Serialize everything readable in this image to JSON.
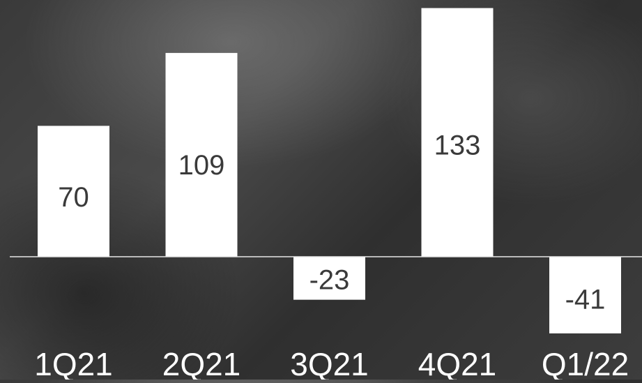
{
  "chart_data": {
    "type": "bar",
    "categories": [
      "1Q21",
      "2Q21",
      "3Q21",
      "4Q21",
      "Q1/22"
    ],
    "values": [
      70,
      109,
      -23,
      133,
      -41
    ],
    "data_labels": [
      "70",
      "109",
      "-23",
      "133",
      "-41"
    ],
    "title": "",
    "xlabel": "",
    "ylabel": "",
    "ylim": [
      -41,
      133
    ],
    "grid": false,
    "legend": "none",
    "colors": {
      "bar": "#ffffff",
      "label": "#3a3a3a",
      "category_label": "#ffffff",
      "axis_line": "#e6e6e6"
    }
  }
}
